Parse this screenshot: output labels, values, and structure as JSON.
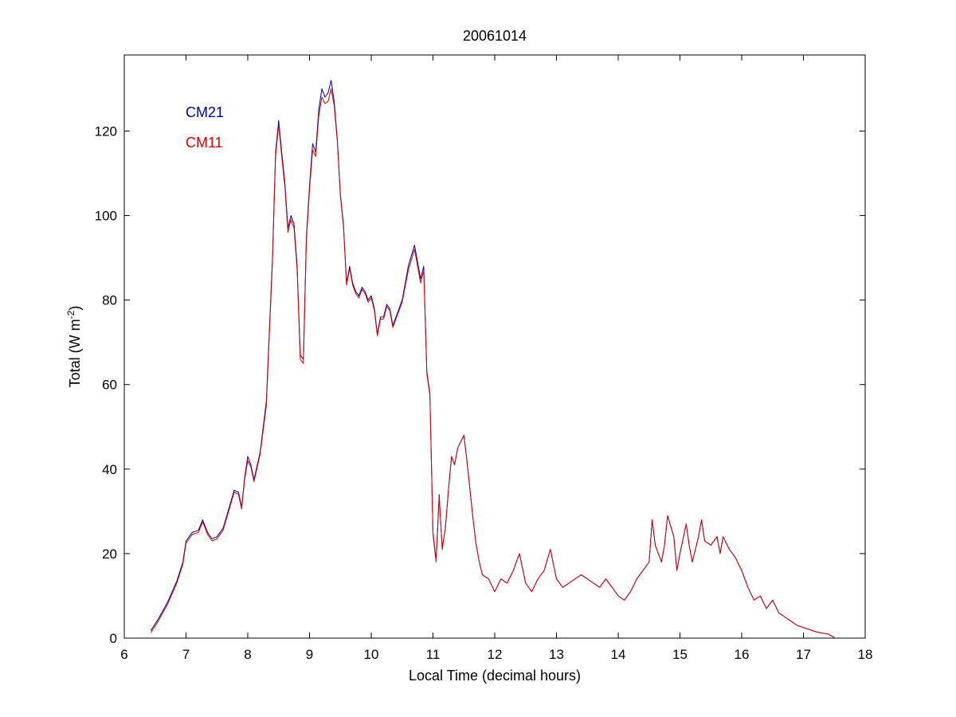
{
  "chart_data": {
    "type": "line",
    "title": "20061014",
    "xlabel": "Local Time (decimal hours)",
    "ylabel": {
      "base": "Total (W m",
      "superscript": "-2",
      "close": ")"
    },
    "xlim": [
      6,
      18
    ],
    "ylim": [
      0,
      138
    ],
    "xticks": [
      6,
      7,
      8,
      9,
      10,
      11,
      12,
      13,
      14,
      15,
      16,
      17,
      18
    ],
    "yticks": [
      0,
      20,
      40,
      60,
      80,
      100,
      120
    ],
    "grid": false,
    "legend_position": "top-left",
    "series": [
      {
        "name": "CM21",
        "color": "#0000aa",
        "x": [
          6.43,
          6.55,
          6.7,
          6.85,
          6.95,
          7.0,
          7.1,
          7.2,
          7.27,
          7.35,
          7.42,
          7.5,
          7.6,
          7.7,
          7.78,
          7.85,
          7.9,
          7.95,
          8.0,
          8.05,
          8.1,
          8.2,
          8.3,
          8.4,
          8.45,
          8.5,
          8.55,
          8.6,
          8.65,
          8.7,
          8.75,
          8.8,
          8.85,
          8.9,
          8.95,
          9.0,
          9.05,
          9.1,
          9.15,
          9.2,
          9.25,
          9.3,
          9.35,
          9.4,
          9.45,
          9.5,
          9.55,
          9.6,
          9.65,
          9.7,
          9.75,
          9.8,
          9.85,
          9.9,
          9.95,
          10.0,
          10.05,
          10.1,
          10.15,
          10.2,
          10.25,
          10.3,
          10.35,
          10.4,
          10.5,
          10.6,
          10.7,
          10.8,
          10.85,
          10.9,
          10.95,
          11.0,
          11.05,
          11.1,
          11.15,
          11.2,
          11.25,
          11.3,
          11.35,
          11.4,
          11.5,
          11.55,
          11.6,
          11.65,
          11.7,
          11.75,
          11.8,
          11.9,
          12.0,
          12.1,
          12.2,
          12.3,
          12.4,
          12.5,
          12.6,
          12.7,
          12.8,
          12.9,
          13.0,
          13.1,
          13.2,
          13.3,
          13.4,
          13.5,
          13.6,
          13.7,
          13.8,
          13.9,
          14.0,
          14.1,
          14.2,
          14.3,
          14.4,
          14.5,
          14.55,
          14.6,
          14.7,
          14.75,
          14.8,
          14.9,
          14.95,
          15.0,
          15.1,
          15.15,
          15.2,
          15.3,
          15.35,
          15.4,
          15.5,
          15.6,
          15.65,
          15.7,
          15.8,
          15.9,
          16.0,
          16.1,
          16.2,
          16.3,
          16.4,
          16.5,
          16.6,
          16.7,
          16.8,
          16.9,
          17.0,
          17.1,
          17.2,
          17.3,
          17.4,
          17.45,
          17.5
        ],
        "y": [
          1.8,
          4.5,
          8.5,
          13.5,
          18,
          23,
          25,
          25.5,
          28,
          25,
          23.5,
          24,
          26,
          31,
          35,
          34.5,
          31,
          38,
          43,
          41,
          37.5,
          44,
          56,
          90,
          115,
          122.5,
          115,
          108,
          97,
          100,
          98,
          88,
          67,
          66,
          95,
          107,
          117,
          115,
          125,
          130,
          128,
          129,
          132,
          127,
          118,
          105,
          98,
          84,
          88,
          84,
          82,
          81,
          83,
          82,
          80,
          81,
          78,
          72,
          76,
          76,
          79,
          78,
          74,
          76,
          80,
          88,
          93,
          85,
          88,
          63,
          58,
          25,
          18.5,
          34,
          21,
          26,
          35,
          43,
          41,
          45,
          48,
          42,
          35,
          28,
          22,
          18,
          15,
          14,
          11,
          14,
          13,
          16,
          20,
          13,
          11,
          14,
          16,
          21,
          14,
          12,
          13,
          14,
          15,
          14,
          13,
          12,
          14,
          12,
          10,
          9,
          11,
          14,
          16,
          18,
          28,
          22,
          18,
          22,
          29,
          24,
          16,
          20,
          27,
          22,
          18,
          24,
          28,
          23,
          22,
          24,
          20,
          24,
          21,
          19,
          16,
          12,
          9,
          10,
          7,
          9,
          6,
          5,
          4,
          3,
          2.5,
          2,
          1.5,
          1.2,
          1,
          0.5,
          0.2
        ],
        "offset_dy": 0
      },
      {
        "name": "CM11",
        "color": "#dd0000",
        "x": [
          6.43,
          6.55,
          6.7,
          6.85,
          6.95,
          7.0,
          7.1,
          7.2,
          7.27,
          7.35,
          7.42,
          7.5,
          7.6,
          7.7,
          7.78,
          7.85,
          7.9,
          7.95,
          8.0,
          8.05,
          8.1,
          8.2,
          8.3,
          8.4,
          8.45,
          8.5,
          8.55,
          8.6,
          8.65,
          8.7,
          8.75,
          8.8,
          8.85,
          8.9,
          8.95,
          9.0,
          9.05,
          9.1,
          9.15,
          9.2,
          9.25,
          9.3,
          9.35,
          9.4,
          9.45,
          9.5,
          9.55,
          9.6,
          9.65,
          9.7,
          9.75,
          9.8,
          9.85,
          9.9,
          9.95,
          10.0,
          10.05,
          10.1,
          10.15,
          10.2,
          10.25,
          10.3,
          10.35,
          10.4,
          10.5,
          10.6,
          10.7,
          10.8,
          10.85,
          10.9,
          10.95,
          11.0,
          11.05,
          11.1,
          11.15,
          11.2,
          11.25,
          11.3,
          11.35,
          11.4,
          11.5,
          11.55,
          11.6,
          11.65,
          11.7,
          11.75,
          11.8,
          11.9,
          12.0,
          12.1,
          12.2,
          12.3,
          12.4,
          12.5,
          12.6,
          12.7,
          12.8,
          12.9,
          13.0,
          13.1,
          13.2,
          13.3,
          13.4,
          13.5,
          13.6,
          13.7,
          13.8,
          13.9,
          14.0,
          14.1,
          14.2,
          14.3,
          14.4,
          14.5,
          14.55,
          14.6,
          14.7,
          14.75,
          14.8,
          14.9,
          14.95,
          15.0,
          15.1,
          15.15,
          15.2,
          15.3,
          15.35,
          15.4,
          15.5,
          15.6,
          15.65,
          15.7,
          15.8,
          15.9,
          16.0,
          16.1,
          16.2,
          16.3,
          16.4,
          16.5,
          16.6,
          16.7,
          16.8,
          16.9,
          17.0,
          17.1,
          17.2,
          17.3,
          17.4,
          17.45,
          17.5
        ],
        "y": [
          1.3,
          4,
          8,
          13,
          17.5,
          22.5,
          24.5,
          25,
          27.5,
          24.5,
          23,
          23.5,
          25.5,
          30.5,
          34.5,
          34,
          30.5,
          37.5,
          42,
          40.5,
          37,
          43.5,
          55,
          89,
          114,
          121.5,
          114,
          107,
          96,
          99,
          97,
          87,
          66,
          65,
          94,
          106,
          115.5,
          114,
          123.5,
          128,
          126.5,
          127,
          130,
          126,
          117.5,
          104.5,
          97.5,
          83.5,
          87.5,
          83.5,
          81.5,
          80.5,
          82.5,
          81.5,
          79.5,
          80.5,
          77.5,
          71.5,
          75.5,
          75.5,
          78.5,
          77.5,
          73.5,
          75.5,
          79.5,
          87,
          92,
          84,
          87,
          62.5,
          57.5,
          24.5,
          18,
          33.5,
          21,
          26,
          35,
          43,
          41,
          45,
          48,
          42,
          35,
          28,
          22,
          18,
          15,
          14,
          11,
          14,
          13,
          16,
          20,
          13,
          11,
          14,
          16,
          21,
          14,
          12,
          13,
          14,
          15,
          14,
          13,
          12,
          14,
          12,
          10,
          9,
          11,
          14,
          16,
          18,
          28,
          22,
          18,
          22,
          29,
          24,
          16,
          20,
          27,
          22,
          18,
          24,
          28,
          23,
          22,
          24,
          20,
          24,
          21,
          19,
          16,
          12,
          9,
          10,
          7,
          9,
          6,
          5,
          4,
          3,
          2.5,
          2,
          1.5,
          1.2,
          1,
          0.5,
          0.2
        ]
      }
    ]
  }
}
